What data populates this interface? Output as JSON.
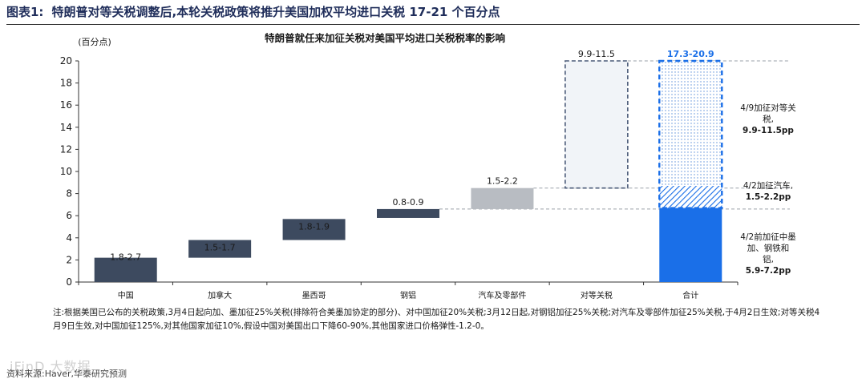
{
  "figure": {
    "label": "图表1:",
    "title": "特朗普对等关税调整后,本轮关税政策将推升美国加权平均进口关税 17-21 个百分点"
  },
  "chart_data": {
    "type": "bar",
    "title": "特朗普就任来加征关税对美国平均进口关税税率的影响",
    "ylabel": "(百分点)",
    "ylim": [
      0,
      20
    ],
    "yticks": [
      0,
      2,
      4,
      6,
      8,
      10,
      12,
      14,
      16,
      18,
      20
    ],
    "categories": [
      "中国",
      "加拿大",
      "墨西哥",
      "钢铝",
      "汽车及零部件",
      "对等关税",
      "合计"
    ],
    "bars": [
      {
        "low": 0.0,
        "high": 2.2,
        "label": "1.8-2.7",
        "style": "solid"
      },
      {
        "low": 2.2,
        "high": 3.8,
        "label": "1.5-1.7",
        "style": "solid"
      },
      {
        "low": 3.8,
        "high": 5.7,
        "label": "1.8-1.9",
        "style": "solid"
      },
      {
        "low": 5.8,
        "high": 6.6,
        "label": "0.8-0.9",
        "style": "solid"
      },
      {
        "low": 6.6,
        "high": 8.5,
        "label": "1.5-2.2",
        "style": "gray"
      },
      {
        "low": 8.5,
        "high": 20.0,
        "label": "9.9-11.5",
        "style": "dashed"
      }
    ],
    "total": {
      "label": "17.3-20.9",
      "segments": [
        {
          "low": 0.0,
          "high": 6.7,
          "style": "blue",
          "annotation": [
            "4/2前加征中墨",
            "加、钢铁和",
            "铝,"
          ],
          "value": "5.9-7.2pp"
        },
        {
          "low": 6.7,
          "high": 8.7,
          "style": "hatch",
          "annotation": [
            "4/2加征汽车,"
          ],
          "value": "1.5-2.2pp"
        },
        {
          "low": 8.7,
          "high": 20.0,
          "style": "dots",
          "annotation": [
            "4/9加征对等关",
            "税,"
          ],
          "value": "9.9-11.5pp"
        }
      ]
    },
    "colors": {
      "navy": "#3d4a5f",
      "gray": "#b8bcc2",
      "blue": "#1a6fe8",
      "dash": "#4a5a78",
      "dashed_fill": "#f1f4f8"
    }
  },
  "note": "注:根据美国已公布的关税政策,3月4日起向加、墨加征25%关税(排除符合美墨加协定的部分)、对中国加征20%关税;3月12日起,对钢铝加征25%关税;对汽车及零部件加征25%关税,于4月2日生效;对等关税4月9日生效,对中国加征125%,对其他国家加征10%,假设中国对美国出口下降60-90%,其他国家进口价格弹性-1.2-0。",
  "source": "资料来源:Haver,华泰研究预测",
  "watermark": "iFinD 大数据"
}
